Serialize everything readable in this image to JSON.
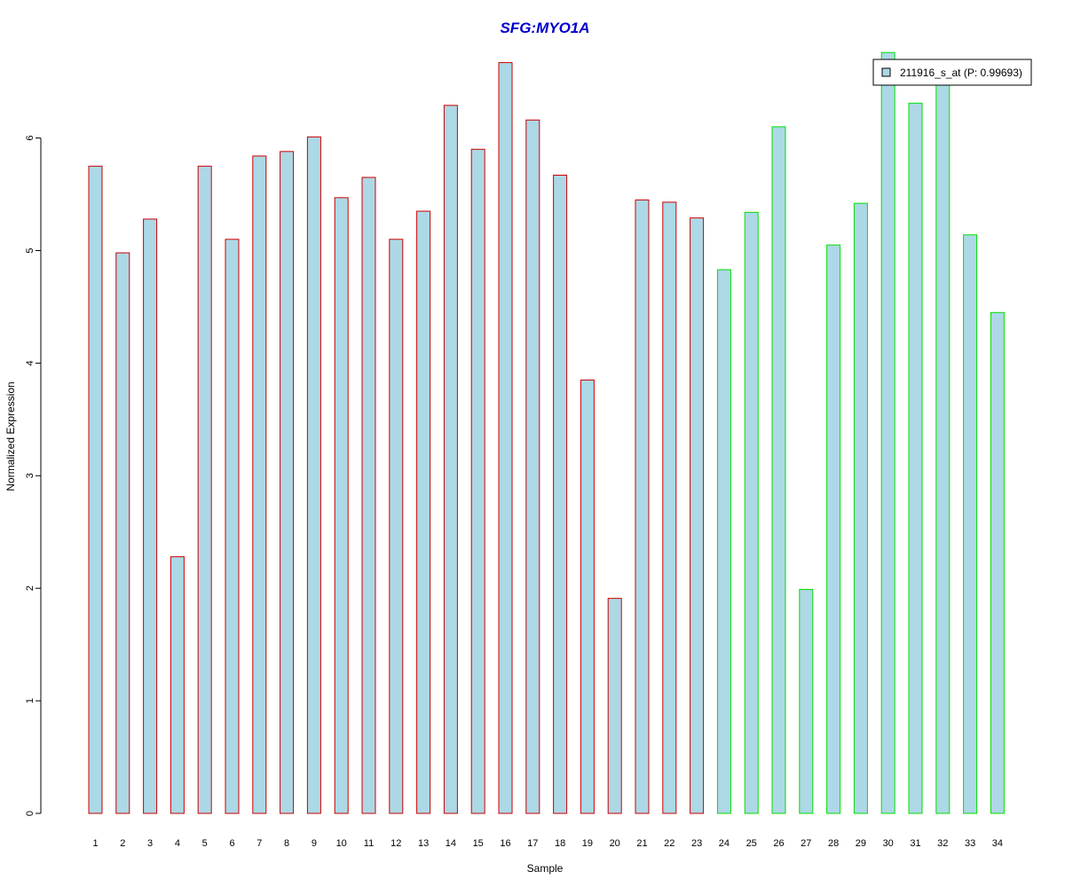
{
  "chart_data": {
    "type": "bar",
    "title": "SFG:MYO1A",
    "xlabel": "Sample",
    "ylabel": "Normalized Expression",
    "ylim": [
      0,
      6.8
    ],
    "yticks": [
      0,
      1,
      2,
      3,
      4,
      5,
      6
    ],
    "grid": false,
    "legend": {
      "placement": "top-right",
      "entries": [
        "211916_s_at (P: 0.99693)"
      ]
    },
    "categories": [
      "1",
      "2",
      "3",
      "4",
      "5",
      "6",
      "7",
      "8",
      "9",
      "10",
      "11",
      "12",
      "13",
      "14",
      "15",
      "16",
      "17",
      "18",
      "19",
      "20",
      "21",
      "22",
      "23",
      "24",
      "25",
      "26",
      "27",
      "28",
      "29",
      "30",
      "31",
      "32",
      "33",
      "34"
    ],
    "series": [
      {
        "name": "211916_s_at (P: 0.99693)",
        "values": [
          5.75,
          4.98,
          5.28,
          2.28,
          5.75,
          5.1,
          5.84,
          5.88,
          6.01,
          5.47,
          5.65,
          5.1,
          5.35,
          6.29,
          5.9,
          6.67,
          6.16,
          5.67,
          3.85,
          1.91,
          5.45,
          5.43,
          5.29,
          4.83,
          5.34,
          6.1,
          1.99,
          5.05,
          5.42,
          6.76,
          6.31,
          6.57,
          5.14,
          4.45
        ],
        "groups": [
          "red",
          "red",
          "red",
          "red",
          "red",
          "red",
          "red",
          "red",
          "red",
          "red",
          "red",
          "red",
          "red",
          "red",
          "red",
          "red",
          "red",
          "red",
          "red",
          "red",
          "red",
          "red",
          "red",
          "green",
          "green",
          "green",
          "green",
          "green",
          "green",
          "green",
          "green",
          "green",
          "green",
          "green"
        ]
      }
    ],
    "colors": {
      "bar_fill": "#add8e6",
      "group_red": "#cc0000",
      "group_green": "#00e000",
      "title": "#0000cc"
    }
  }
}
